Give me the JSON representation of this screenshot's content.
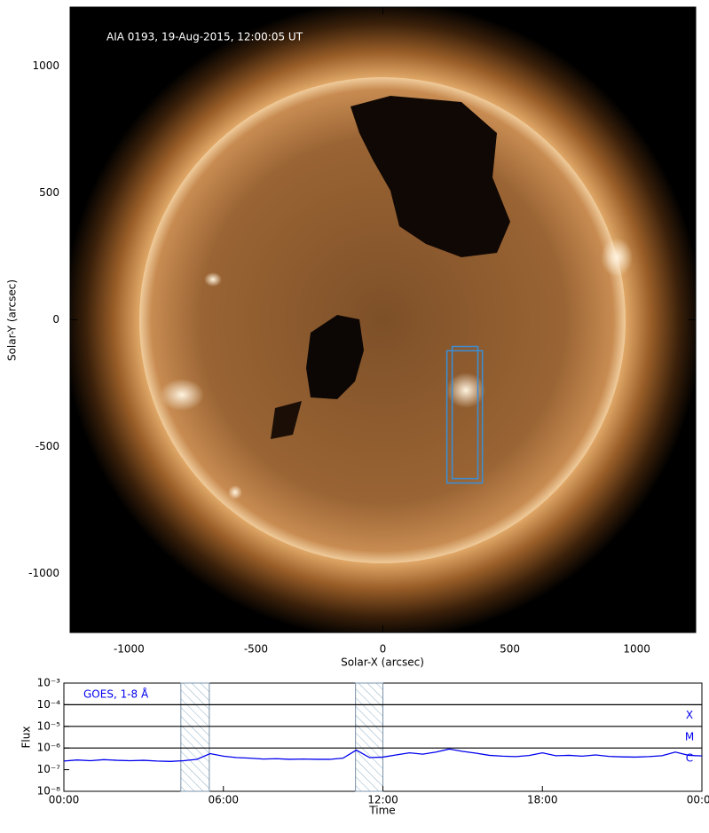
{
  "chart_data": [
    {
      "type": "image",
      "annotation": "AIA 0193, 19-Aug-2015, 12:00:05 UT",
      "xlabel": "Solar-X (arcsec)",
      "ylabel": "Solar-Y (arcsec)",
      "xlim": [
        -1232,
        1232
      ],
      "ylim": [
        -1232,
        1232
      ],
      "xticks": [
        -1000,
        -500,
        0,
        500,
        1000
      ],
      "yticks": [
        -1000,
        -500,
        0,
        500,
        1000
      ],
      "box_color": "#3a8fd8",
      "boxes": [
        {
          "x0": 252,
          "x1": 392,
          "y0": -643,
          "y1": -122
        },
        {
          "x0": 273,
          "x1": 374,
          "y0": -626,
          "y1": -105
        }
      ]
    },
    {
      "type": "line",
      "log_y": true,
      "xlabel": "Time",
      "ylabel": "Flux",
      "xlim": [
        0,
        24
      ],
      "ylim": [
        1e-08,
        0.001
      ],
      "xticks": [
        {
          "value": 0,
          "label": "00:00"
        },
        {
          "value": 6,
          "label": "06:00"
        },
        {
          "value": 12,
          "label": "12:00"
        },
        {
          "value": 18,
          "label": "18:00"
        },
        {
          "value": 24,
          "label": "00:00"
        }
      ],
      "yticks": [
        {
          "value": 1e-08,
          "label": "10⁻⁸"
        },
        {
          "value": 1e-07,
          "label": "10⁻⁷"
        },
        {
          "value": 1e-06,
          "label": "10⁻⁶"
        },
        {
          "value": 1e-05,
          "label": "10⁻⁵"
        },
        {
          "value": 0.0001,
          "label": "10⁻⁴"
        },
        {
          "value": 0.001,
          "label": "10⁻³"
        }
      ],
      "flare_classes": [
        {
          "label": "X",
          "value": 0.0001
        },
        {
          "label": "M",
          "value": 1e-05
        },
        {
          "label": "C",
          "value": 1e-06
        }
      ],
      "shaded_intervals": [
        [
          4.4,
          5.47
        ],
        [
          10.97,
          12.0
        ]
      ],
      "x": [
        0,
        0.5,
        1,
        1.5,
        2,
        2.5,
        3,
        3.5,
        4,
        4.5,
        5,
        5.5,
        6,
        6.5,
        7,
        7.5,
        8,
        8.5,
        9,
        9.5,
        10,
        10.5,
        11,
        11.5,
        12,
        12.5,
        13,
        13.5,
        14,
        14.5,
        15,
        15.5,
        16,
        16.5,
        17,
        17.5,
        18,
        18.5,
        19,
        19.5,
        20,
        20.5,
        21,
        21.5,
        22,
        22.5,
        23,
        23.5,
        24
      ],
      "series": [
        {
          "name": "GOES, 1-8 Å",
          "color": "#0000ee",
          "values": [
            2.5e-07,
            2.8e-07,
            2.6e-07,
            2.9e-07,
            2.7e-07,
            2.6e-07,
            2.7e-07,
            2.5e-07,
            2.4e-07,
            2.6e-07,
            3e-07,
            5.5e-07,
            4.2e-07,
            3.6e-07,
            3.4e-07,
            3.1e-07,
            3.2e-07,
            3e-07,
            3.1e-07,
            3e-07,
            3e-07,
            3.4e-07,
            8e-07,
            3.6e-07,
            3.8e-07,
            4.8e-07,
            6e-07,
            5.2e-07,
            6.5e-07,
            9e-07,
            7e-07,
            5.8e-07,
            4.6e-07,
            4.2e-07,
            4e-07,
            4.5e-07,
            6e-07,
            4.4e-07,
            4.6e-07,
            4.2e-07,
            4.8e-07,
            4.1e-07,
            3.9e-07,
            3.8e-07,
            4e-07,
            4.4e-07,
            6.5e-07,
            4.6e-07,
            4.3e-07
          ]
        }
      ]
    }
  ]
}
